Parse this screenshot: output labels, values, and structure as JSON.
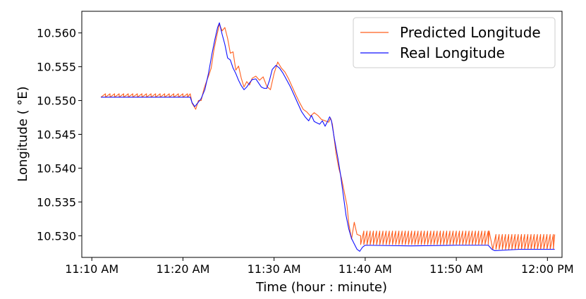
{
  "chart_data": {
    "type": "line",
    "title": "",
    "xlabel": "Time (hour : minute)",
    "ylabel": "Longitude ( $^\\circ$E)",
    "ylabel_display": "Longitude ( °E)",
    "x_unit": "minutes past 11:00 AM",
    "xlim": [
      8.9,
      61.6
    ],
    "ylim": [
      10.5268,
      10.5632
    ],
    "x_ticks": [
      {
        "value": 10,
        "label": "11:10 AM"
      },
      {
        "value": 20,
        "label": "11:20 AM"
      },
      {
        "value": 30,
        "label": "11:30 AM"
      },
      {
        "value": 40,
        "label": "11:40 AM"
      },
      {
        "value": 50,
        "label": "11:50 AM"
      },
      {
        "value": 60,
        "label": "12:00 PM"
      }
    ],
    "y_ticks": [
      {
        "value": 10.53,
        "label": "10.530"
      },
      {
        "value": 10.535,
        "label": "10.535"
      },
      {
        "value": 10.54,
        "label": "10.540"
      },
      {
        "value": 10.545,
        "label": "10.545"
      },
      {
        "value": 10.55,
        "label": "10.550"
      },
      {
        "value": 10.555,
        "label": "10.555"
      },
      {
        "value": 10.56,
        "label": "10.560"
      }
    ],
    "grid": false,
    "legend_position": "top-right",
    "series": [
      {
        "name": "Predicted Longitude",
        "color": "#ff5f1f",
        "sawtooth": [
          {
            "from": 11.0,
            "to": 20.8,
            "low": 10.5505,
            "high": 10.551,
            "step": 0.5
          },
          {
            "from": 39.5,
            "to": 53.6,
            "low": 10.5287,
            "high": 10.5307,
            "step": 0.35
          },
          {
            "from": 54.0,
            "to": 60.8,
            "low": 10.528,
            "high": 10.5302,
            "step": 0.35
          }
        ],
        "points": [
          [
            20.8,
            10.551
          ],
          [
            21.0,
            10.5496
          ],
          [
            21.4,
            10.5487
          ],
          [
            21.7,
            10.55
          ],
          [
            22.0,
            10.55
          ],
          [
            22.3,
            10.5517
          ],
          [
            22.5,
            10.5525
          ],
          [
            22.8,
            10.5536
          ],
          [
            23.1,
            10.5548
          ],
          [
            23.4,
            10.5575
          ],
          [
            23.7,
            10.5595
          ],
          [
            24.0,
            10.5613
          ],
          [
            24.3,
            10.5603
          ],
          [
            24.6,
            10.5608
          ],
          [
            24.9,
            10.5592
          ],
          [
            25.2,
            10.557
          ],
          [
            25.5,
            10.5572
          ],
          [
            25.8,
            10.5545
          ],
          [
            26.1,
            10.5551
          ],
          [
            26.4,
            10.5533
          ],
          [
            26.7,
            10.552
          ],
          [
            27.0,
            10.5528
          ],
          [
            27.3,
            10.5523
          ],
          [
            27.6,
            10.5533
          ],
          [
            28.0,
            10.5536
          ],
          [
            28.4,
            10.553
          ],
          [
            28.8,
            10.5535
          ],
          [
            29.2,
            10.5521
          ],
          [
            29.6,
            10.5516
          ],
          [
            30.0,
            10.554
          ],
          [
            30.4,
            10.5557
          ],
          [
            30.8,
            10.5548
          ],
          [
            31.2,
            10.5542
          ],
          [
            31.6,
            10.5532
          ],
          [
            32.0,
            10.552
          ],
          [
            32.4,
            10.5508
          ],
          [
            32.8,
            10.5497
          ],
          [
            33.2,
            10.5487
          ],
          [
            33.6,
            10.5483
          ],
          [
            34.0,
            10.5477
          ],
          [
            34.4,
            10.5482
          ],
          [
            34.8,
            10.5478
          ],
          [
            35.2,
            10.5472
          ],
          [
            35.6,
            10.547
          ],
          [
            36.0,
            10.5468
          ],
          [
            36.2,
            10.5474
          ],
          [
            36.4,
            10.5465
          ],
          [
            36.8,
            10.5422
          ],
          [
            37.1,
            10.54
          ],
          [
            37.4,
            10.5385
          ],
          [
            37.7,
            10.5365
          ],
          [
            38.0,
            10.5345
          ],
          [
            38.2,
            10.5318
          ],
          [
            38.5,
            10.5295
          ],
          [
            38.8,
            10.532
          ],
          [
            39.1,
            10.5302
          ],
          [
            39.5,
            10.53
          ]
        ]
      },
      {
        "name": "Real Longitude",
        "color": "#1010ff",
        "points": [
          [
            11.0,
            10.5505
          ],
          [
            20.8,
            10.5505
          ],
          [
            21.0,
            10.5497
          ],
          [
            21.3,
            10.5491
          ],
          [
            21.6,
            10.5496
          ],
          [
            22.0,
            10.5503
          ],
          [
            22.4,
            10.5516
          ],
          [
            22.8,
            10.554
          ],
          [
            23.2,
            10.557
          ],
          [
            23.5,
            10.559
          ],
          [
            23.8,
            10.5608
          ],
          [
            24.0,
            10.5615
          ],
          [
            24.3,
            10.5598
          ],
          [
            24.6,
            10.5583
          ],
          [
            24.9,
            10.5563
          ],
          [
            25.2,
            10.556
          ],
          [
            25.5,
            10.5548
          ],
          [
            25.8,
            10.554
          ],
          [
            26.1,
            10.553
          ],
          [
            26.4,
            10.5522
          ],
          [
            26.7,
            10.5516
          ],
          [
            27.0,
            10.552
          ],
          [
            27.3,
            10.5526
          ],
          [
            27.6,
            10.5531
          ],
          [
            28.0,
            10.5532
          ],
          [
            28.3,
            10.5526
          ],
          [
            28.6,
            10.552
          ],
          [
            28.9,
            10.5518
          ],
          [
            29.2,
            10.5518
          ],
          [
            29.5,
            10.553
          ],
          [
            29.8,
            10.5546
          ],
          [
            30.2,
            10.5552
          ],
          [
            30.6,
            10.5548
          ],
          [
            31.0,
            10.554
          ],
          [
            31.4,
            10.553
          ],
          [
            31.8,
            10.552
          ],
          [
            32.2,
            10.5508
          ],
          [
            32.6,
            10.5496
          ],
          [
            33.0,
            10.5484
          ],
          [
            33.4,
            10.5476
          ],
          [
            33.8,
            10.547
          ],
          [
            34.1,
            10.5478
          ],
          [
            34.4,
            10.5469
          ],
          [
            34.7,
            10.5467
          ],
          [
            35.0,
            10.5465
          ],
          [
            35.3,
            10.547
          ],
          [
            35.6,
            10.5462
          ],
          [
            35.9,
            10.547
          ],
          [
            36.1,
            10.5476
          ],
          [
            36.3,
            10.547
          ],
          [
            36.6,
            10.5445
          ],
          [
            37.0,
            10.5415
          ],
          [
            37.3,
            10.539
          ],
          [
            37.6,
            10.536
          ],
          [
            37.9,
            10.533
          ],
          [
            38.2,
            10.531
          ],
          [
            38.5,
            10.5296
          ],
          [
            38.8,
            10.5288
          ],
          [
            39.1,
            10.528
          ],
          [
            39.4,
            10.5277
          ],
          [
            39.7,
            10.5283
          ],
          [
            40.0,
            10.5286
          ],
          [
            45.0,
            10.5285
          ],
          [
            50.0,
            10.5286
          ],
          [
            53.5,
            10.5286
          ],
          [
            53.9,
            10.528
          ],
          [
            54.2,
            10.5278
          ],
          [
            57.0,
            10.528
          ],
          [
            60.8,
            10.528
          ]
        ]
      }
    ]
  }
}
